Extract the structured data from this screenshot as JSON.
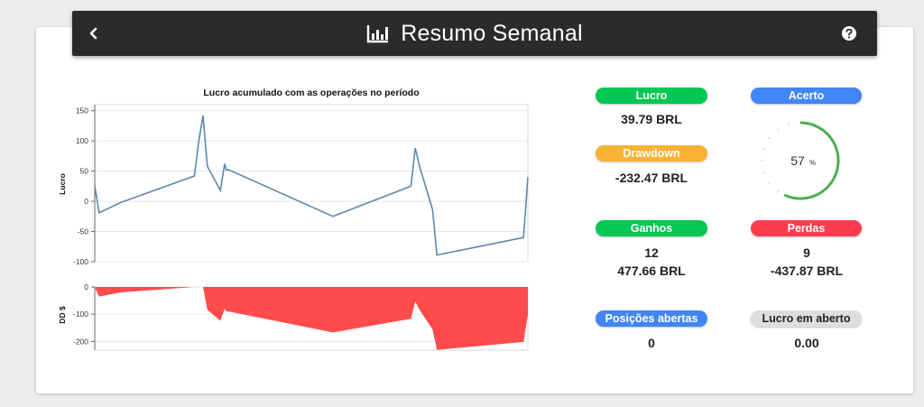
{
  "header": {
    "title": "Resumo Semanal",
    "back_icon": "chevron-left-icon",
    "chart_icon": "bar-chart-icon",
    "help_icon": "help-circle-icon"
  },
  "stats": {
    "lucro": {
      "label": "Lucro",
      "value": "39.79 BRL",
      "color": "#00c853"
    },
    "acerto": {
      "label": "Acerto",
      "value": "57",
      "unit": "%",
      "percent": 57,
      "color": "#4285f4",
      "arc_color": "#4caf50"
    },
    "drawdown": {
      "label": "Drawdown",
      "value": "-232.47 BRL",
      "color": "#f9b233"
    },
    "ganhos": {
      "label": "Ganhos",
      "count": "12",
      "value": "477.66 BRL",
      "color": "#00c853"
    },
    "perdas": {
      "label": "Perdas",
      "count": "9",
      "value": "-437.87 BRL",
      "color": "#ff3b4e"
    },
    "posicoes": {
      "label": "Posições abertas",
      "value": "0",
      "color": "#4285f4"
    },
    "lucro_aberto": {
      "label": "Lucro em aberto",
      "value": "0.00",
      "color": "#dedede"
    }
  },
  "chart_data": [
    {
      "type": "line",
      "title": "Lucro acumulado com as operações no período",
      "ylabel": "Lucro",
      "ylim": [
        -100,
        160
      ],
      "yticks": [
        150,
        100,
        50,
        0,
        -50,
        -100
      ],
      "color": "#5f87ab",
      "x": [
        0,
        1,
        6,
        23,
        24,
        25,
        26,
        29,
        30,
        30.4,
        31,
        55,
        73,
        74,
        75,
        78,
        79,
        99,
        100
      ],
      "y": [
        26,
        -19,
        -2,
        42,
        98,
        142,
        58,
        18,
        62,
        52,
        52,
        -25,
        25,
        88,
        58,
        -14,
        -89,
        -60,
        40
      ]
    },
    {
      "type": "area",
      "ylabel": "DD $",
      "ylim": [
        -232,
        0
      ],
      "yticks": [
        0,
        -100,
        -200
      ],
      "color": "#ff4b4b",
      "x": [
        0,
        1,
        6,
        23,
        24,
        25,
        26,
        29,
        30,
        30.4,
        31,
        55,
        73,
        74,
        75,
        78,
        79,
        99,
        100
      ],
      "y": [
        0,
        -35,
        -20,
        0,
        0,
        0,
        -84,
        -124,
        -80,
        -90,
        -90,
        -167,
        -117,
        -54,
        -84,
        -156,
        -231,
        -202,
        -102
      ]
    }
  ]
}
